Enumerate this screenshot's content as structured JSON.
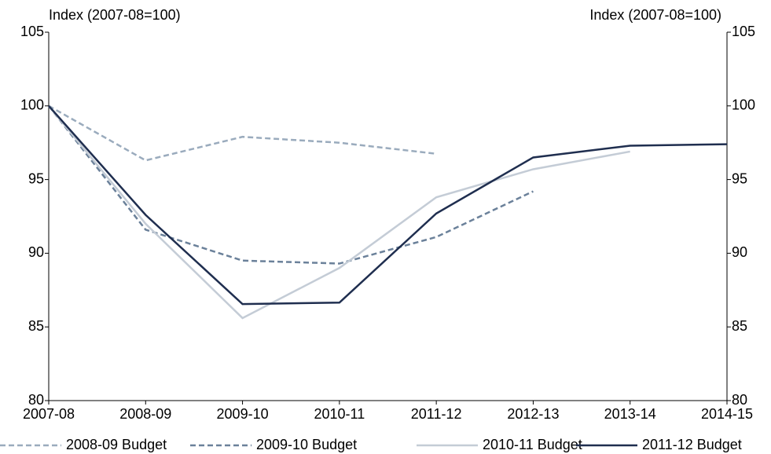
{
  "chart_data": {
    "type": "line",
    "y_label": "Index (2007-08=100)",
    "y2_label": "Index (2007-08=100)",
    "categories": [
      "2007-08",
      "2008-09",
      "2009-10",
      "2010-11",
      "2011-12",
      "2012-13",
      "2013-14",
      "2014-15"
    ],
    "series": [
      {
        "name": "2008-09 Budget",
        "color": "#9aabbd",
        "dash": true,
        "values": [
          100,
          96.3,
          97.9,
          97.5,
          96.75,
          null,
          null,
          null
        ]
      },
      {
        "name": "2009-10 Budget",
        "color": "#6b819a",
        "dash": true,
        "values": [
          100,
          91.6,
          89.5,
          89.3,
          91.1,
          94.2,
          null,
          null
        ]
      },
      {
        "name": "2010-11 Budget",
        "color": "#c4ccd6",
        "dash": false,
        "values": [
          100,
          92.0,
          85.6,
          89.0,
          93.8,
          95.7,
          96.9,
          null
        ]
      },
      {
        "name": "2011-12 Budget",
        "color": "#1f2e4f",
        "dash": false,
        "values": [
          100,
          92.6,
          86.55,
          86.65,
          92.7,
          96.5,
          97.3,
          97.4
        ]
      }
    ],
    "ylim": [
      80,
      105
    ],
    "yticks": [
      80,
      85,
      90,
      95,
      100,
      105
    ],
    "y2lim": [
      80,
      105
    ],
    "y2ticks": [
      80,
      85,
      90,
      95,
      100,
      105
    ],
    "grid": false,
    "legend": "bottom"
  }
}
